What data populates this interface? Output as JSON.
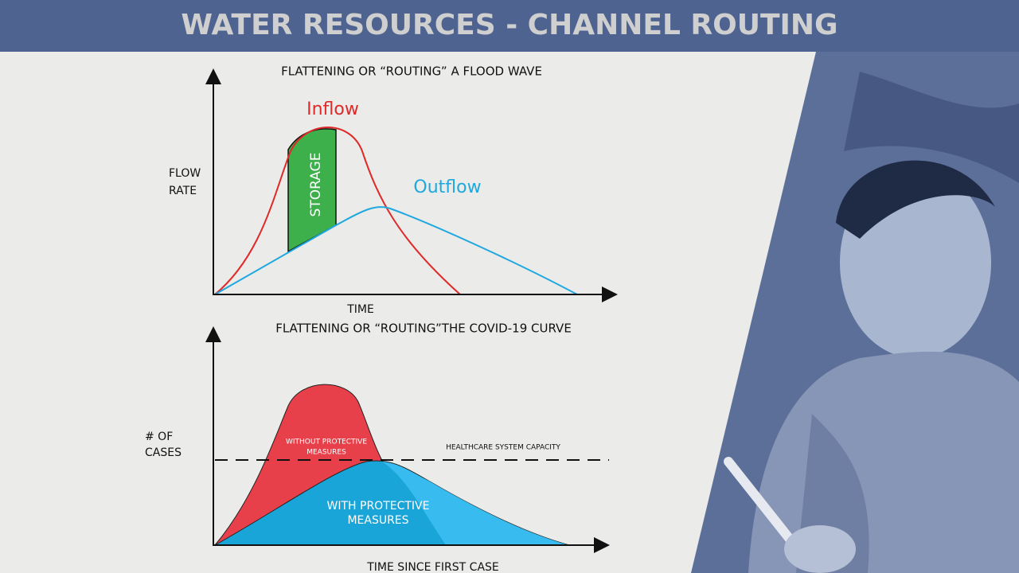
{
  "header": {
    "title": "WATER RESOURCES - CHANNEL ROUTING"
  },
  "flood_wave": {
    "title": "FLATTENING OR “ROUTING” A FLOOD WAVE",
    "y_label": [
      "FLOW",
      "RATE"
    ],
    "x_label": "TIME",
    "inflow": "Inflow",
    "outflow": "Outflow",
    "storage": "STORAGE"
  },
  "covid_curve": {
    "title": "FLATTENING OR “ROUTING”THE COVID-19 CURVE",
    "y_label": [
      "# OF",
      "CASES"
    ],
    "x_label": "TIME SINCE FIRST CASE",
    "without": [
      "WITHOUT PROTECTIVE",
      "MEASURES"
    ],
    "capacity": "HEALTHCARE SYSTEM CAPACITY",
    "with": [
      "WITH PROTECTIVE",
      "MEASURES"
    ]
  }
}
